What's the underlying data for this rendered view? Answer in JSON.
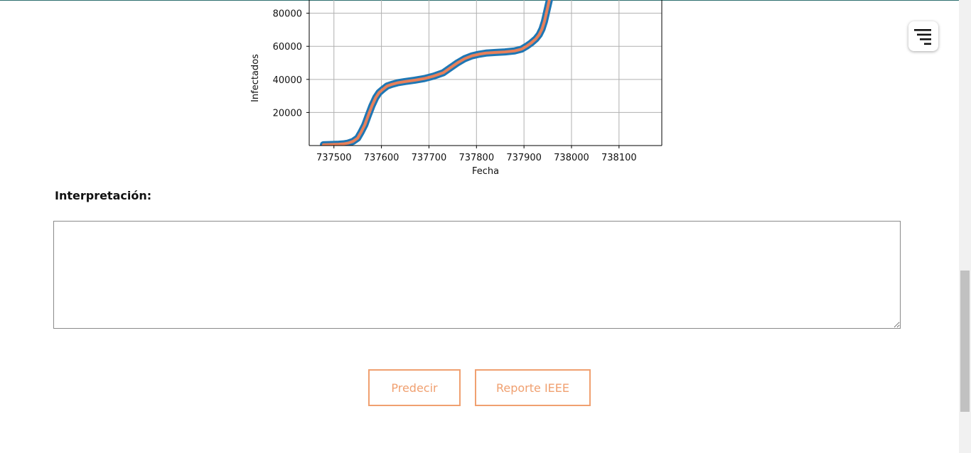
{
  "chart_data": {
    "type": "scatter",
    "title": "",
    "xlabel": "Fecha",
    "ylabel": "Infectados",
    "xlim": [
      737448,
      738190
    ],
    "ylim": [
      0,
      88000
    ],
    "x_ticks": [
      737500,
      737600,
      737700,
      737800,
      737900,
      738000,
      738100
    ],
    "y_ticks": [
      20000,
      40000,
      60000,
      80000
    ],
    "x_tick_labels": [
      "737500",
      "737600",
      "737700",
      "737800",
      "737900",
      "738000",
      "738100"
    ],
    "y_tick_labels": [
      "20000",
      "40000",
      "60000",
      "80000"
    ],
    "grid": true,
    "series": [
      {
        "color": "#1f77b4",
        "style": "scatter",
        "x": [
          737478,
          737490,
          737500,
          737510,
          737520,
          737530,
          737540,
          737550,
          737557,
          737565,
          737572,
          737580,
          737588,
          737595,
          737603,
          737612,
          737622,
          737635,
          737650,
          737670,
          737690,
          737710,
          737730,
          737745,
          737760,
          737775,
          737790,
          737805,
          737820,
          737840,
          737860,
          737880,
          737895,
          737905,
          737915,
          737925,
          737932,
          737938,
          737943,
          737947,
          737951,
          737955,
          737958
        ],
        "y": [
          500,
          600,
          700,
          800,
          1000,
          1500,
          2500,
          4500,
          8000,
          12500,
          18000,
          24000,
          29000,
          32000,
          34000,
          36000,
          37000,
          38000,
          38700,
          39500,
          40500,
          42000,
          44000,
          47000,
          50000,
          52500,
          54200,
          55200,
          55900,
          56300,
          56600,
          57200,
          58300,
          60000,
          62000,
          64500,
          67000,
          70500,
          75000,
          80000,
          85000,
          90000,
          95000
        ]
      },
      {
        "color": "#e8805a",
        "style": "line",
        "x": [
          737478,
          737490,
          737500,
          737510,
          737520,
          737530,
          737540,
          737550,
          737557,
          737565,
          737572,
          737580,
          737588,
          737595,
          737603,
          737612,
          737622,
          737635,
          737650,
          737670,
          737690,
          737710,
          737730,
          737745,
          737760,
          737775,
          737790,
          737805,
          737820,
          737840,
          737860,
          737880,
          737895,
          737905,
          737915,
          737925,
          737932,
          737938,
          737943,
          737947,
          737951,
          737955,
          737958
        ],
        "y": [
          500,
          600,
          700,
          800,
          1000,
          1500,
          2500,
          4500,
          8000,
          12500,
          18000,
          24000,
          29000,
          32000,
          34000,
          36000,
          37000,
          38000,
          38700,
          39500,
          40500,
          42000,
          44000,
          47000,
          50000,
          52500,
          54200,
          55200,
          55900,
          56300,
          56600,
          57200,
          58300,
          60000,
          62000,
          64500,
          67000,
          70500,
          75000,
          80000,
          85000,
          90000,
          95000
        ]
      }
    ]
  },
  "form": {
    "interpretation_label": "Interpretación:",
    "interpretation_value": "",
    "interpretation_placeholder": ""
  },
  "actions": {
    "predict_label": "Predecir",
    "report_label": "Reporte IEEE",
    "accent_color": "#f0a070"
  },
  "menu": {
    "icon": "menu-icon"
  }
}
